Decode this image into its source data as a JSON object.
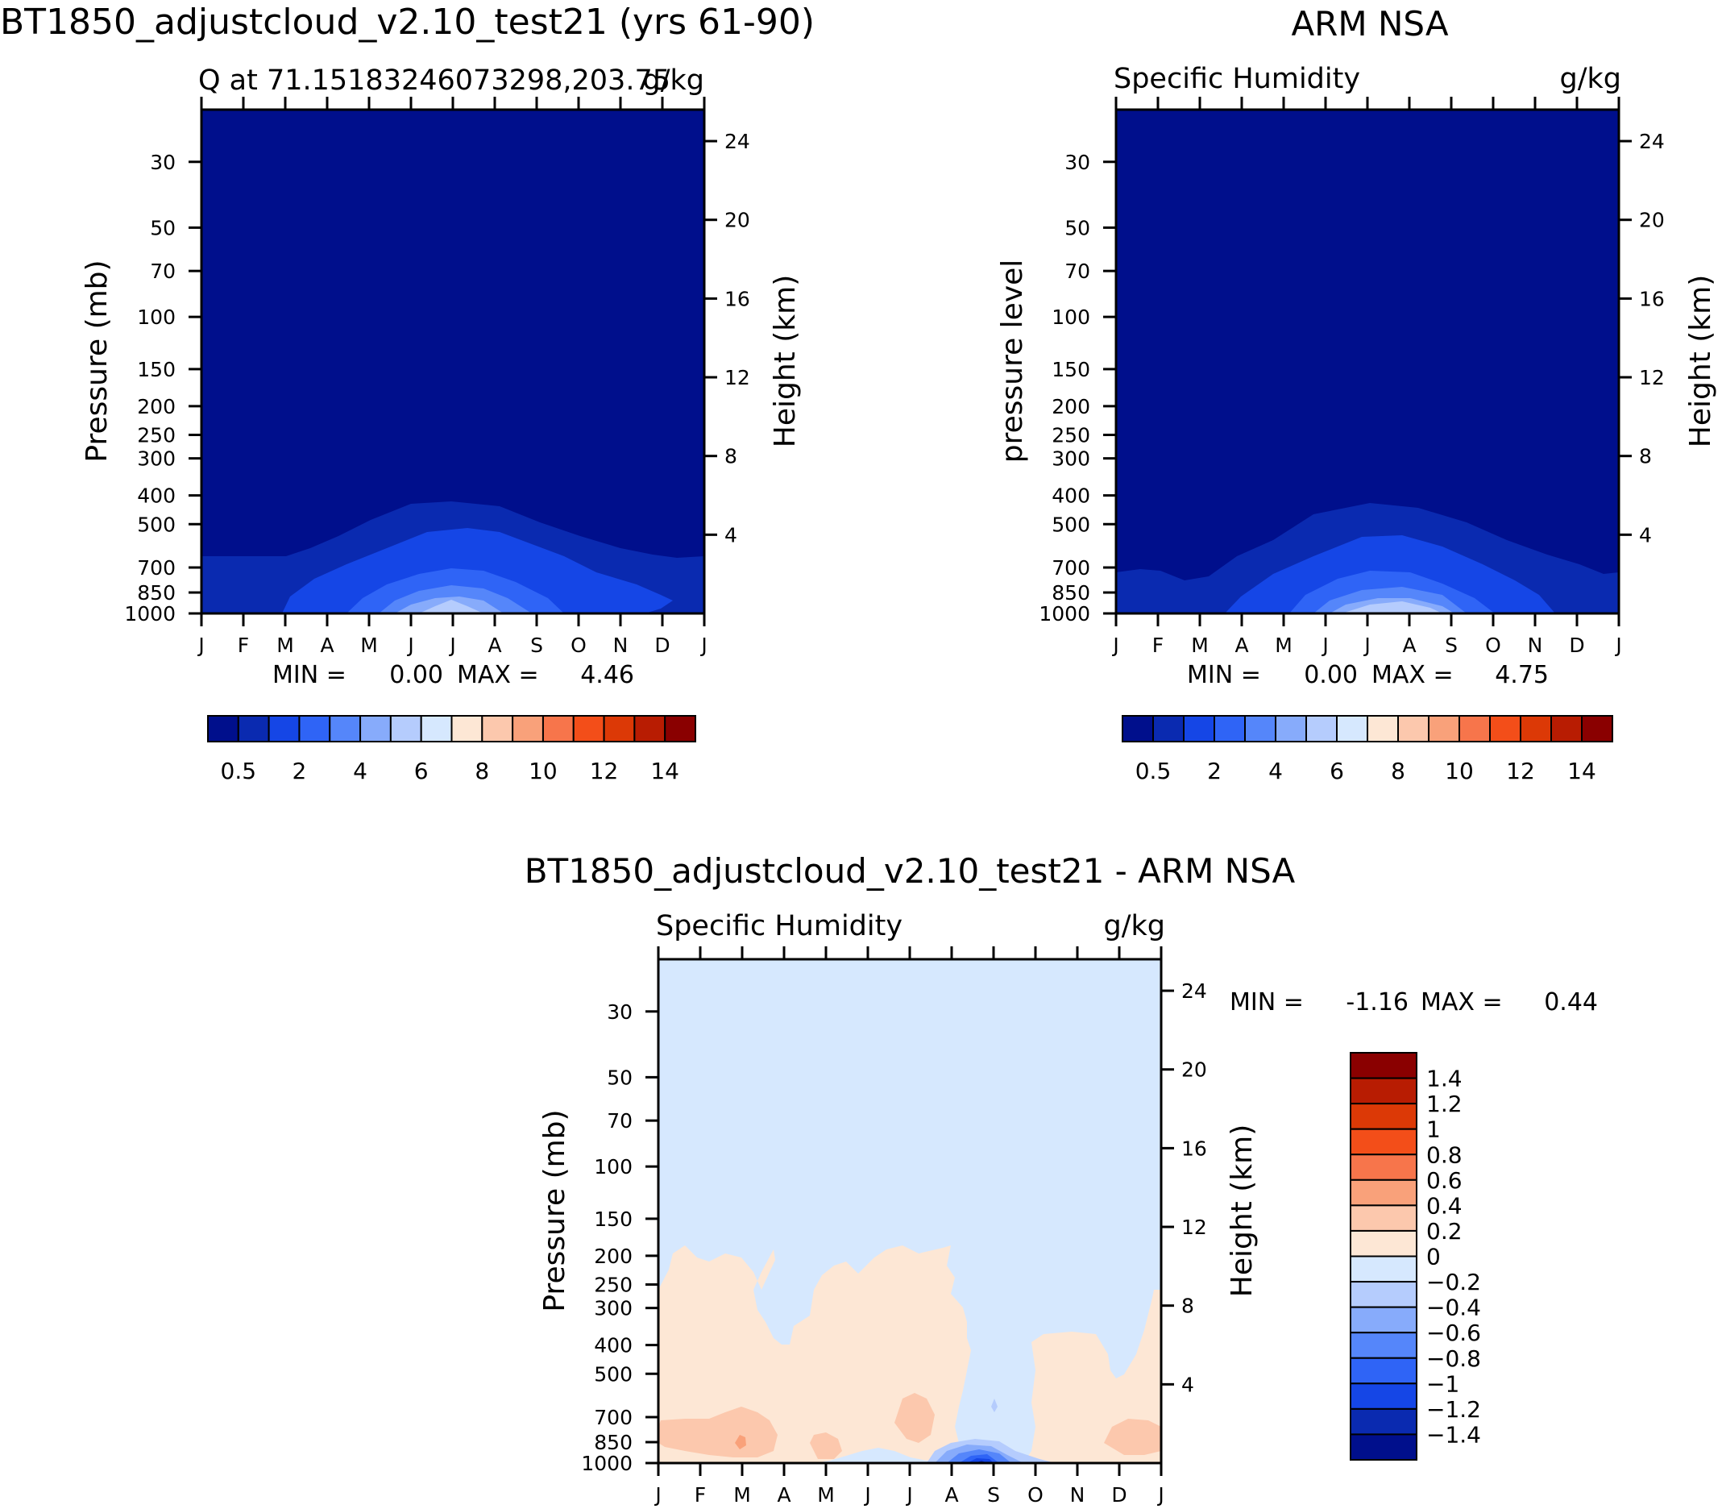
{
  "titles": {
    "left": "BT1850_adjustcloud_v2.10_test21 (yrs 61-90)",
    "right": "ARM NSA",
    "bottom": "BT1850_adjustcloud_v2.10_test21 - ARM NSA"
  },
  "colors": {
    "levels": [
      "#000f8c",
      "#0a2ab0",
      "#1546e6",
      "#2f64f6",
      "#5586fa",
      "#87abfb",
      "#b5ccfd",
      "#d6e8fe",
      "#fde7d5",
      "#fcc8ad",
      "#f9a17a",
      "#f7754b",
      "#f34e19",
      "#dc3906",
      "#b81c02",
      "#8a0000"
    ],
    "diff_levels": [
      "#8a0000",
      "#b81c02",
      "#dc3906",
      "#f34e19",
      "#f7754b",
      "#f9a17a",
      "#fcc8ad",
      "#fde7d5",
      "#d6e8fe",
      "#b5ccfd",
      "#87abfb",
      "#5586fa",
      "#2f64f6",
      "#1546e6",
      "#0a2ab0",
      "#000f8c"
    ]
  },
  "chart_data": [
    {
      "type": "heatmap",
      "title": "Q at 71.15183246073298,203.75",
      "units": "g/kg",
      "ylabel": "Pressure (mb)",
      "y2label": "Height (km)",
      "x_ticks": [
        "J",
        "F",
        "M",
        "A",
        "M",
        "J",
        "J",
        "A",
        "S",
        "O",
        "N",
        "D",
        "J"
      ],
      "y_ticks": [
        30,
        50,
        70,
        100,
        150,
        200,
        250,
        300,
        400,
        500,
        700,
        850,
        1000
      ],
      "y2_ticks": [
        4,
        8,
        12,
        16,
        20,
        24
      ],
      "ylim": [
        1000,
        20
      ],
      "y2lim": [
        0,
        25.6
      ],
      "min_label": "MIN =",
      "min": "0.00",
      "max_label": "MAX =",
      "max": "4.46",
      "colorbar_labels": [
        "0.5",
        "2",
        "4",
        "6",
        "8",
        "10",
        "12",
        "14"
      ],
      "contour_tops_mb": [
        [
          370,
          710
        ],
        [
          450,
          690
        ],
        [
          550,
          615
        ],
        [
          690,
          590
        ],
        [
          850,
          560
        ]
      ]
    },
    {
      "type": "heatmap",
      "title": "Specific Humidity",
      "units": "g/kg",
      "ylabel": "pressure level",
      "y2label": "Height (km)",
      "x_ticks": [
        "J",
        "F",
        "M",
        "A",
        "M",
        "J",
        "J",
        "A",
        "S",
        "O",
        "N",
        "D",
        "J"
      ],
      "y_ticks": [
        30,
        50,
        70,
        100,
        150,
        200,
        250,
        300,
        400,
        500,
        700,
        850,
        1000
      ],
      "y2_ticks": [
        4,
        8,
        12,
        16,
        20,
        24
      ],
      "ylim": [
        1000,
        20
      ],
      "y2lim": [
        0,
        25.6
      ],
      "min_label": "MIN =",
      "min": "0.00",
      "max_label": "MAX =",
      "max": "4.75",
      "colorbar_labels": [
        "0.5",
        "2",
        "4",
        "6",
        "8",
        "10",
        "12",
        "14"
      ]
    },
    {
      "type": "heatmap",
      "title": "Specific Humidity",
      "units": "g/kg",
      "ylabel": "Pressure (mb)",
      "y2label": "Height (km)",
      "x_ticks": [
        "J",
        "F",
        "M",
        "A",
        "M",
        "J",
        "J",
        "A",
        "S",
        "O",
        "N",
        "D",
        "J"
      ],
      "y_ticks": [
        30,
        50,
        70,
        100,
        150,
        200,
        250,
        300,
        400,
        500,
        700,
        850,
        1000
      ],
      "y2_ticks": [
        4,
        8,
        12,
        16,
        20,
        24
      ],
      "ylim": [
        1000,
        20
      ],
      "y2lim": [
        0,
        25.6
      ],
      "min_label": "MIN =",
      "min": "-1.16",
      "max_label": "MAX =",
      "max": "0.44",
      "colorbar_labels": [
        "1.4",
        "1.2",
        "1",
        "0.8",
        "0.6",
        "0.4",
        "0.2",
        "0",
        "-0.2",
        "-0.4",
        "-0.6",
        "-0.8",
        "-1",
        "-1.2",
        "-1.4"
      ]
    }
  ]
}
